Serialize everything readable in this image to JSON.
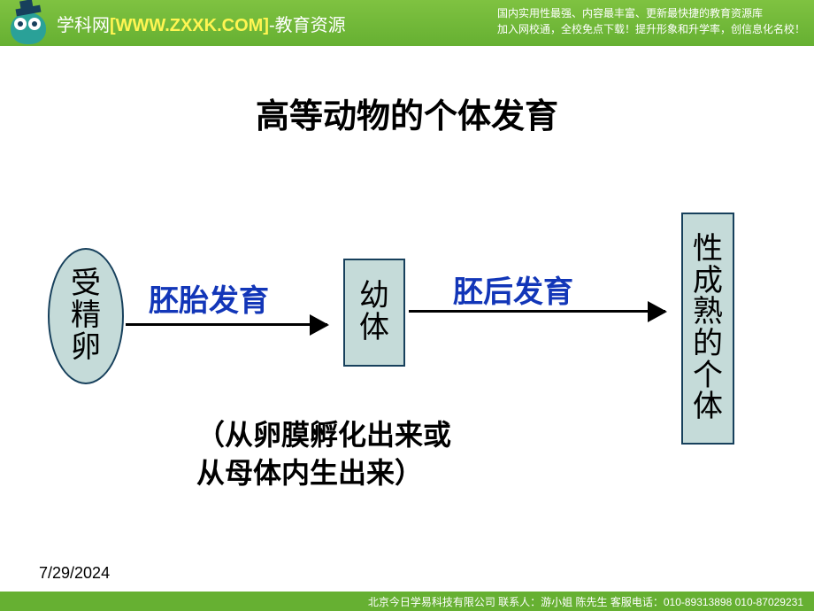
{
  "header": {
    "site_label": "学科网",
    "url": "[WWW.ZXXK.COM]",
    "suffix": "-教育资源",
    "tagline1": "国内实用性最强、内容最丰富、更新最快捷的教育资源库",
    "tagline2": "加入网校通，全校免点下载！提升形象和升学率，创信息化名校！"
  },
  "title": "高等动物的个体发育",
  "diagram": {
    "type": "flowchart",
    "nodes": [
      {
        "id": "n1",
        "label": "受精卵",
        "shape": "oval"
      },
      {
        "id": "n2",
        "label": "幼体",
        "shape": "rect"
      },
      {
        "id": "n3",
        "label": "性成熟的个体",
        "shape": "rect"
      }
    ],
    "edges": [
      {
        "from": "n1",
        "to": "n2",
        "label": "胚胎发育"
      },
      {
        "from": "n2",
        "to": "n3",
        "label": "胚后发育"
      }
    ],
    "node_fill": "#c5dbd9",
    "node_border": "#17405c",
    "edge_label_color": "#1236b8",
    "arrow_color": "#000000",
    "node_fontsize": 34,
    "label_fontsize": 34
  },
  "note_line1": "（从卵膜孵化出来或",
  "note_line2": "从母体内生出来）",
  "date": "7/29/2024",
  "footer": "北京今日学易科技有限公司 联系人：游小姐 陈先生 客服电话：010-89313898 010-87029231",
  "colors": {
    "header_bg": "#66b032",
    "header_url": "#fff552",
    "background": "#ffffff",
    "title_color": "#000000"
  }
}
